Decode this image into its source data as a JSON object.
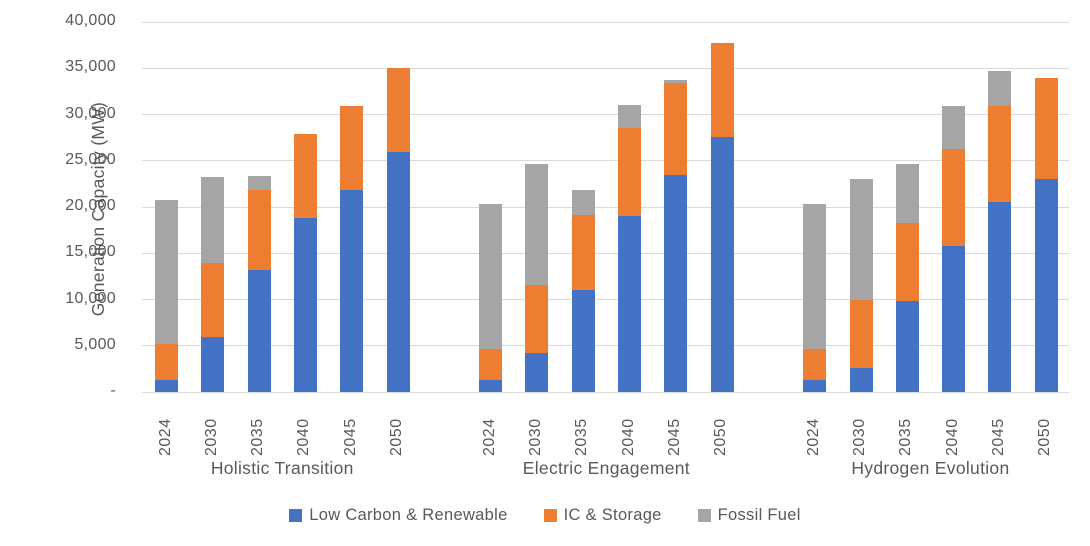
{
  "chart_data": {
    "type": "bar",
    "stacked": true,
    "ylabel": "Generation Capacity (MW)",
    "y_axis": {
      "min": 0,
      "max": 40000,
      "step": 5000,
      "tick_labels": [
        "-",
        "5,000",
        "10,000",
        "15,000",
        "20,000",
        "25,000",
        "30,000",
        "35,000",
        "40,000"
      ],
      "grid": true
    },
    "categories": [
      "2024",
      "2030",
      "2035",
      "2040",
      "2045",
      "2050"
    ],
    "legend_position": "bottom",
    "series": [
      {
        "name": "Low Carbon & Renewable",
        "color": "#4472C4"
      },
      {
        "name": "IC & Storage",
        "color": "#ED7D31"
      },
      {
        "name": "Fossil Fuel",
        "color": "#A5A5A5"
      }
    ],
    "groups": [
      {
        "label": "Holistic Transition",
        "values": {
          "Low Carbon & Renewable": [
            1300,
            6000,
            13200,
            18800,
            21800,
            26000
          ],
          "IC & Storage": [
            3900,
            8000,
            8600,
            9100,
            9100,
            9000
          ],
          "Fossil Fuel": [
            15600,
            9200,
            1600,
            0,
            0,
            0
          ]
        }
      },
      {
        "label": "Electric Engagement",
        "values": {
          "Low Carbon & Renewable": [
            1300,
            4200,
            11000,
            19000,
            23500,
            27600
          ],
          "IC & Storage": [
            3400,
            7400,
            8100,
            9500,
            9900,
            10100
          ],
          "Fossil Fuel": [
            15600,
            13100,
            2700,
            2500,
            300,
            0
          ]
        }
      },
      {
        "label": "Hydrogen Evolution",
        "values": {
          "Low Carbon & Renewable": [
            1300,
            2600,
            9800,
            15800,
            20500,
            23000
          ],
          "IC & Storage": [
            3400,
            7300,
            8500,
            10500,
            10400,
            10900
          ],
          "Fossil Fuel": [
            15600,
            13100,
            6300,
            4600,
            3800,
            0
          ]
        }
      }
    ],
    "colors": {
      "grid": "#D9D9D9",
      "text": "#595959",
      "background": "#FFFFFF"
    }
  }
}
